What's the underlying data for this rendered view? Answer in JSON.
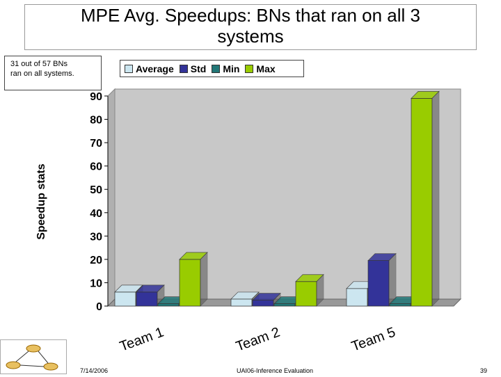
{
  "slide": {
    "title_line1": "MPE Avg. Speedups: BNs that ran on all 3",
    "title_line2": "systems",
    "note_line1": "31 out of 57 BNs",
    "note_line2": "ran on all systems.",
    "footer_date": "7/14/2006",
    "footer_center": "UAI06-Inference Evaluation",
    "footer_page": "39"
  },
  "chart_data": {
    "type": "bar",
    "title": "",
    "ylabel": "Speedup stats",
    "xlabel": "",
    "ylim": [
      0,
      90
    ],
    "yticks": [
      0,
      10,
      20,
      30,
      40,
      50,
      60,
      70,
      80,
      90
    ],
    "categories": [
      "Team 1",
      "Team 2",
      "Team 5"
    ],
    "legend_position": "top",
    "grid": false,
    "series": [
      {
        "name": "Average",
        "color": "#cce6f0",
        "values": [
          6,
          3,
          7.5
        ]
      },
      {
        "name": "Std",
        "color": "#333399",
        "values": [
          6,
          2.5,
          19.5
        ]
      },
      {
        "name": "Min",
        "color": "#227777",
        "values": [
          1,
          1,
          1
        ]
      },
      {
        "name": "Max",
        "color": "#99cc00",
        "values": [
          20,
          10.5,
          89
        ]
      }
    ]
  }
}
